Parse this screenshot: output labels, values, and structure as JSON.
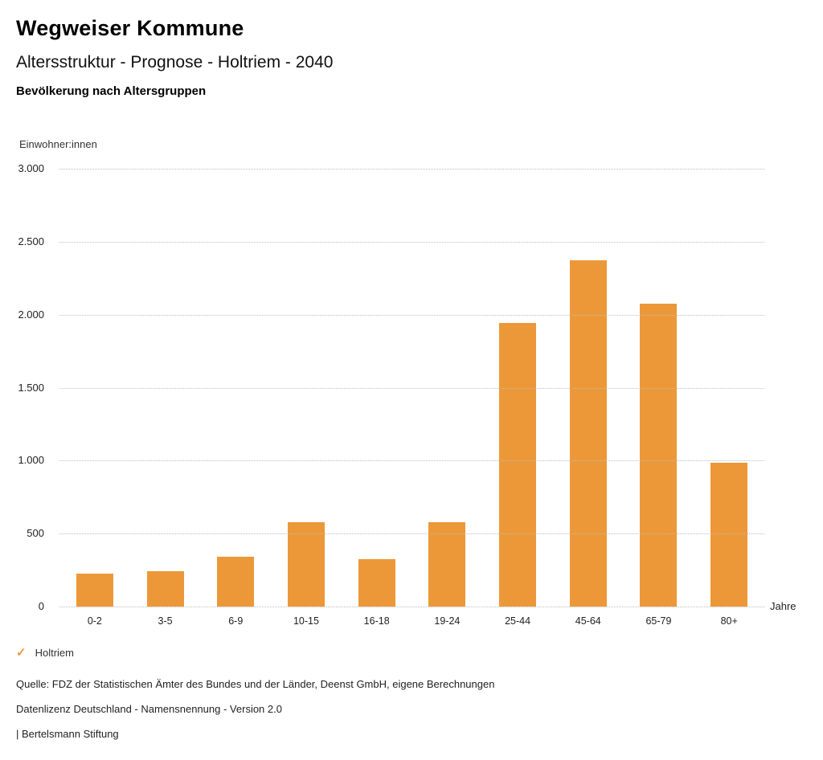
{
  "header": {
    "title": "Wegweiser Kommune",
    "subtitle": "Altersstruktur - Prognose - Holtriem - 2040",
    "section_title": "Bevölkerung nach Altersgruppen"
  },
  "chart_data": {
    "type": "bar",
    "title": "Bevölkerung nach Altersgruppen",
    "ylabel": "Einwohner:innen",
    "xlabel": "Jahre",
    "categories": [
      "0-2",
      "3-5",
      "6-9",
      "10-15",
      "16-18",
      "19-24",
      "25-44",
      "45-64",
      "65-79",
      "80+"
    ],
    "series": [
      {
        "name": "Holtriem",
        "values": [
          225,
          240,
          340,
          580,
          325,
          580,
          1945,
          2370,
          2075,
          985
        ]
      }
    ],
    "ylim": [
      0,
      3000
    ],
    "ytick_labels_top_to_bottom": [
      "3.000",
      "2.500",
      "2.000",
      "1.500",
      "1.000",
      "500",
      "0"
    ],
    "grid": "horizontal-dotted",
    "legend_position": "bottom-left",
    "bar_color": "#ED9838"
  },
  "legend": {
    "check_icon": "✓",
    "label": "Holtriem",
    "color": "#ED9838"
  },
  "footer": {
    "source": "Quelle: FDZ der Statistischen Ämter des Bundes und der Länder, Deenst GmbH, eigene Berechnungen",
    "license": "Datenlizenz Deutschland - Namensnennung - Version 2.0",
    "attribution": "| Bertelsmann Stiftung"
  }
}
